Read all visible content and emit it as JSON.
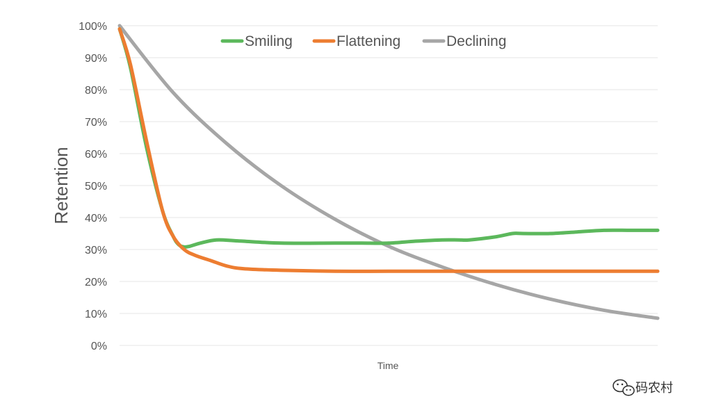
{
  "chart_data": {
    "type": "line",
    "title": "",
    "xlabel": "Time",
    "ylabel": "Retention",
    "ylim": [
      0,
      100
    ],
    "yticks": [
      "0%",
      "10%",
      "20%",
      "30%",
      "40%",
      "50%",
      "60%",
      "70%",
      "80%",
      "90%",
      "100%"
    ],
    "xlim": [
      0,
      100
    ],
    "grid": true,
    "legend_position": "top",
    "series": [
      {
        "name": "Smiling",
        "color": "#5cb85c",
        "x": [
          0,
          2,
          5,
          8,
          10,
          11,
          12,
          13,
          15,
          18,
          22,
          30,
          40,
          45,
          50,
          55,
          60,
          63,
          65,
          70,
          73,
          75,
          80,
          85,
          90,
          95,
          100
        ],
        "y": [
          99,
          87,
          62,
          42,
          34,
          31.5,
          30.8,
          31,
          32,
          33,
          32.7,
          32,
          32,
          32,
          32,
          32.6,
          33,
          33,
          33,
          34,
          35,
          35,
          35,
          35.5,
          36,
          36,
          36
        ]
      },
      {
        "name": "Flattening",
        "color": "#ed7d31",
        "x": [
          0,
          2,
          5,
          8,
          10,
          12,
          14,
          17,
          20,
          23,
          30,
          40,
          50,
          60,
          70,
          80,
          90,
          100
        ],
        "y": [
          99,
          88,
          64,
          42,
          34,
          30,
          28.2,
          26.5,
          24.8,
          24,
          23.5,
          23.2,
          23.2,
          23.2,
          23.2,
          23.2,
          23.2,
          23.2
        ]
      },
      {
        "name": "Declining",
        "color": "#a6a6a6",
        "x": [
          0,
          10,
          20,
          30,
          40,
          50,
          60,
          70,
          80,
          90,
          100
        ],
        "y": [
          100,
          79,
          63,
          50,
          39.5,
          31,
          24.5,
          19,
          14.5,
          11,
          8.5
        ]
      }
    ]
  },
  "watermark": {
    "text": "码农村",
    "icon": "wechat-icon"
  }
}
